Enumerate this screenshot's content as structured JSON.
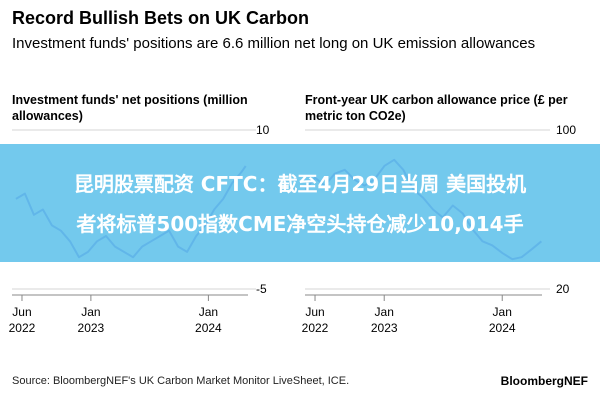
{
  "header": {
    "title": "Record Bullish Bets on UK Carbon",
    "subtitle": "Investment funds' positions are 6.6 million net long on UK emission allowances"
  },
  "chart_data": [
    {
      "type": "line",
      "title": "Investment funds' net positions (million allowances)",
      "color": "#4a42d4",
      "ylim": [
        -5,
        10
      ],
      "yticks": [
        -5,
        10
      ],
      "xlim": [
        "2022-05-01",
        "2024-05-03"
      ],
      "xticks": [
        {
          "date": "2022-06-01",
          "label": [
            "Jun",
            "2022"
          ]
        },
        {
          "date": "2023-01-01",
          "label": [
            "Jan",
            "2023"
          ]
        },
        {
          "date": "2024-01-01",
          "label": [
            "Jan",
            "2024"
          ]
        }
      ],
      "x": [
        "2022-05-13",
        "2022-06-10",
        "2022-07-08",
        "2022-08-05",
        "2022-09-02",
        "2022-09-30",
        "2022-10-28",
        "2022-11-25",
        "2022-12-23",
        "2023-01-20",
        "2023-02-17",
        "2023-03-17",
        "2023-04-14",
        "2023-05-12",
        "2023-06-09",
        "2023-07-07",
        "2023-08-04",
        "2023-09-01",
        "2023-09-29",
        "2023-10-27",
        "2023-11-24",
        "2023-12-22",
        "2024-01-19",
        "2024-02-16",
        "2024-03-15",
        "2024-04-12",
        "2024-04-26"
      ],
      "y": [
        3.5,
        4.0,
        2.0,
        2.5,
        1.0,
        0.5,
        -0.5,
        -2.0,
        -1.5,
        -0.5,
        0.0,
        -1.0,
        -1.5,
        -2.0,
        -1.0,
        -0.5,
        0.0,
        0.5,
        -1.0,
        -1.5,
        0.0,
        1.0,
        2.5,
        3.5,
        5.0,
        6.0,
        6.6
      ]
    },
    {
      "type": "line",
      "title": "Front-year UK carbon allowance price (£ per metric ton CO2e)",
      "color": "#4a42d4",
      "ylim": [
        20,
        100
      ],
      "yticks": [
        20,
        100
      ],
      "xlim": [
        "2022-05-01",
        "2024-05-03"
      ],
      "xticks": [
        {
          "date": "2022-06-01",
          "label": [
            "Jun",
            "2022"
          ]
        },
        {
          "date": "2023-01-01",
          "label": [
            "Jan",
            "2023"
          ]
        },
        {
          "date": "2024-01-01",
          "label": [
            "Jan",
            "2024"
          ]
        }
      ],
      "x": [
        "2022-05-02",
        "2022-06-01",
        "2022-07-01",
        "2022-08-01",
        "2022-09-01",
        "2022-10-01",
        "2022-11-01",
        "2022-12-01",
        "2023-01-02",
        "2023-02-01",
        "2023-03-01",
        "2023-04-01",
        "2023-05-01",
        "2023-06-01",
        "2023-07-01",
        "2023-08-01",
        "2023-09-01",
        "2023-10-01",
        "2023-11-01",
        "2023-12-01",
        "2024-01-02",
        "2024-02-01",
        "2024-03-01",
        "2024-04-01",
        "2024-05-01"
      ],
      "y": [
        70,
        76,
        72,
        78,
        80,
        75,
        72,
        75,
        82,
        85,
        80,
        70,
        66,
        60,
        56,
        62,
        58,
        50,
        44,
        42,
        38,
        35,
        36,
        40,
        44
      ]
    }
  ],
  "banner": {
    "line1": "昆明股票配资 CFTC：截至4月29日当周 美国投机",
    "line2": "者将标普500指数CME净空头持仓减少10,014手"
  },
  "footer": {
    "source": "Source: BloombergNEF's UK Carbon Market Monitor LiveSheet, ICE.",
    "brand": "BloombergNEF"
  }
}
